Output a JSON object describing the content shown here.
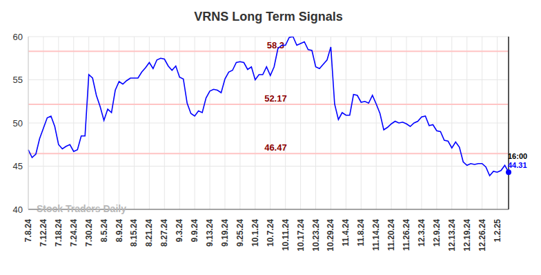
{
  "chart_data": {
    "type": "line",
    "title": "VRNS Long Term Signals",
    "categories": [
      "7.8.24",
      null,
      null,
      null,
      "7.12.24",
      null,
      null,
      null,
      "7.18.24",
      null,
      null,
      null,
      "7.24.24",
      null,
      null,
      null,
      "7.30.24",
      null,
      null,
      null,
      "8.5.24",
      null,
      null,
      null,
      "8.9.24",
      null,
      null,
      null,
      "8.15.24",
      null,
      null,
      null,
      "8.21.24",
      null,
      null,
      null,
      "8.27.24",
      null,
      null,
      null,
      "9.3.24",
      null,
      null,
      null,
      "9.9.24",
      null,
      null,
      null,
      "9.13.24",
      null,
      null,
      null,
      "9.19.24",
      null,
      null,
      null,
      "9.25.24",
      null,
      null,
      null,
      "10.1.24",
      null,
      null,
      null,
      "10.7.24",
      null,
      null,
      null,
      "10.11.24",
      null,
      null,
      null,
      "10.17.24",
      null,
      null,
      null,
      "10.23.24",
      null,
      null,
      null,
      "10.29.24",
      null,
      null,
      null,
      "11.4.24",
      null,
      null,
      null,
      "11.8.24",
      null,
      null,
      null,
      "11.14.24",
      null,
      null,
      null,
      "11.20.24",
      null,
      null,
      null,
      "11.26.24",
      null,
      null,
      null,
      "12.3.24",
      null,
      null,
      null,
      "12.9.24",
      null,
      null,
      null,
      "12.13.24",
      null,
      null,
      null,
      "12.19.24",
      null,
      null,
      null,
      "12.26.24",
      null,
      null,
      null,
      "1.2.25",
      null,
      null,
      null
    ],
    "values": [
      46.9,
      46.0,
      46.4,
      48.2,
      49.4,
      50.6,
      50.8,
      49.6,
      47.5,
      47.0,
      47.3,
      47.5,
      46.7,
      46.9,
      48.5,
      48.5,
      55.6,
      55.2,
      53.2,
      51.9,
      50.3,
      51.6,
      51.2,
      53.8,
      54.8,
      54.5,
      54.9,
      55.2,
      55.2,
      55.2,
      55.9,
      56.4,
      57.0,
      56.3,
      57.3,
      57.5,
      57.4,
      56.6,
      56.1,
      56.6,
      55.3,
      55.1,
      52.3,
      51.1,
      50.8,
      51.4,
      51.2,
      52.9,
      53.7,
      53.9,
      53.8,
      53.5,
      55.1,
      55.9,
      56.1,
      57.0,
      57.1,
      57.0,
      56.2,
      56.5,
      55.0,
      55.6,
      55.6,
      56.5,
      55.5,
      56.5,
      58.6,
      59.0,
      59.0,
      59.9,
      60.0,
      59.0,
      59.2,
      59.4,
      58.5,
      58.4,
      56.5,
      56.3,
      56.8,
      57.3,
      58.8,
      52.2,
      50.4,
      51.2,
      50.9,
      50.9,
      53.3,
      53.2,
      52.4,
      52.5,
      52.3,
      53.2,
      52.2,
      51.1,
      49.2,
      49.5,
      49.9,
      50.2,
      50.0,
      50.1,
      49.9,
      49.6,
      50.0,
      50.2,
      50.7,
      50.8,
      49.7,
      49.8,
      49.1,
      49.0,
      48.0,
      47.9,
      47.1,
      47.8,
      47.2,
      45.5,
      45.1,
      45.3,
      45.2,
      45.3,
      45.3,
      44.9,
      43.9,
      44.4,
      44.3,
      44.5,
      45.1,
      44.31
    ],
    "color": "#0000ff",
    "ylim": [
      40,
      60
    ],
    "yticks": [
      40,
      45,
      50,
      55,
      60
    ],
    "grid": true,
    "reference_lines": [
      58.3,
      52.17,
      46.47
    ],
    "last_label": "16:00",
    "watermark": "Stock Traders Daily"
  }
}
